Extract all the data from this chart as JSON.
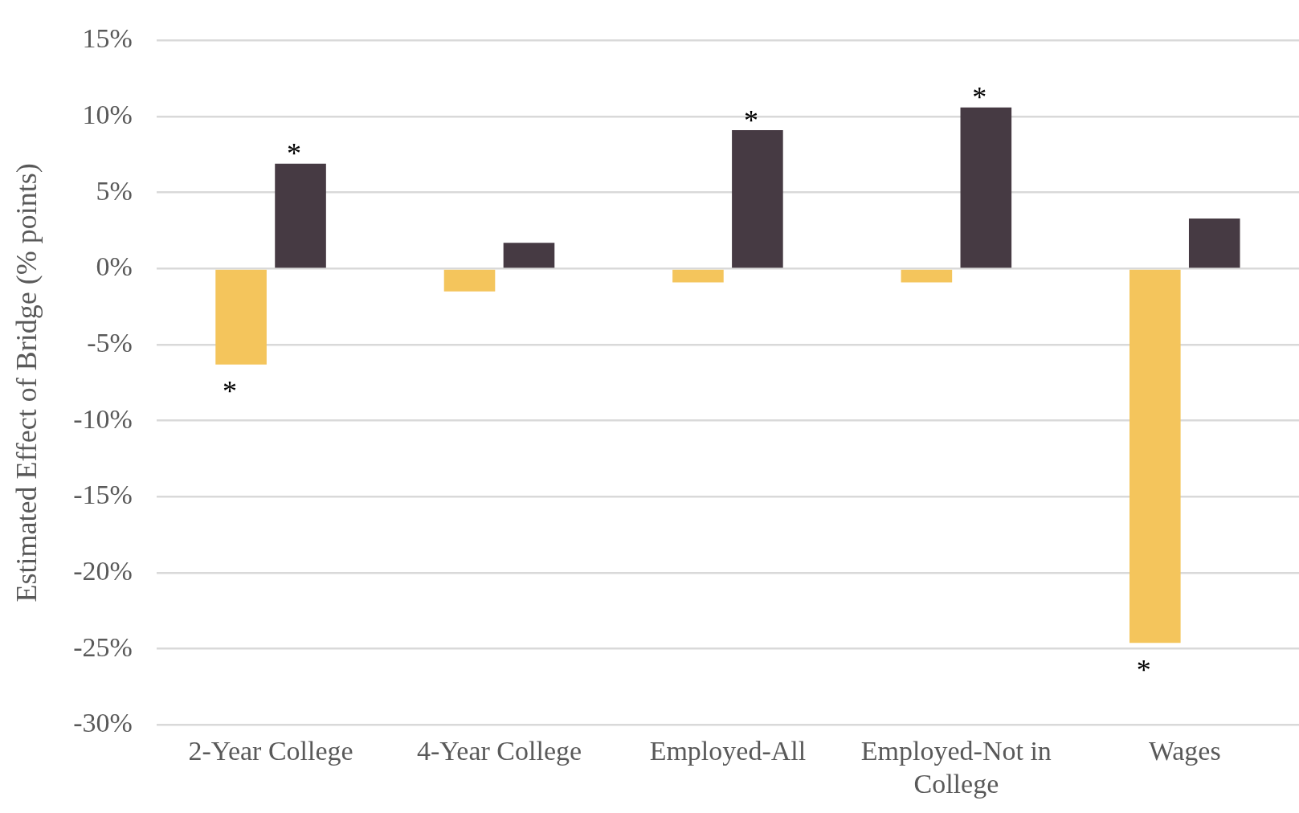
{
  "chart_data": {
    "type": "bar",
    "ylabel": "Estimated Effect of Bridge (% points)",
    "categories": [
      "2-Year College",
      "4-Year College",
      "Employed-All",
      "Employed-Not in College",
      "Wages"
    ],
    "series": [
      {
        "color": "#f4c55c",
        "values": [
          -6.3,
          -1.5,
          -0.9,
          -0.9,
          -24.6
        ],
        "value_labels": [
          "*",
          null,
          null,
          null,
          "*"
        ]
      },
      {
        "color": "#463a43",
        "values": [
          6.9,
          1.7,
          9.1,
          10.6,
          3.3
        ],
        "value_labels": [
          "*",
          null,
          "*",
          "*",
          null
        ]
      }
    ],
    "ylim": [
      -30,
      15
    ],
    "yticks": [
      {
        "value": -30,
        "label": "-30%"
      },
      {
        "value": -25,
        "label": "-25%"
      },
      {
        "value": -20,
        "label": "-20%"
      },
      {
        "value": -15,
        "label": "-15%"
      },
      {
        "value": -10,
        "label": "-10%"
      },
      {
        "value": -5,
        "label": "-5%"
      },
      {
        "value": 0,
        "label": "0%"
      },
      {
        "value": 5,
        "label": "5%"
      },
      {
        "value": 10,
        "label": "10%"
      },
      {
        "value": 15,
        "label": "15%"
      }
    ],
    "grid": "y",
    "legend": false
  }
}
